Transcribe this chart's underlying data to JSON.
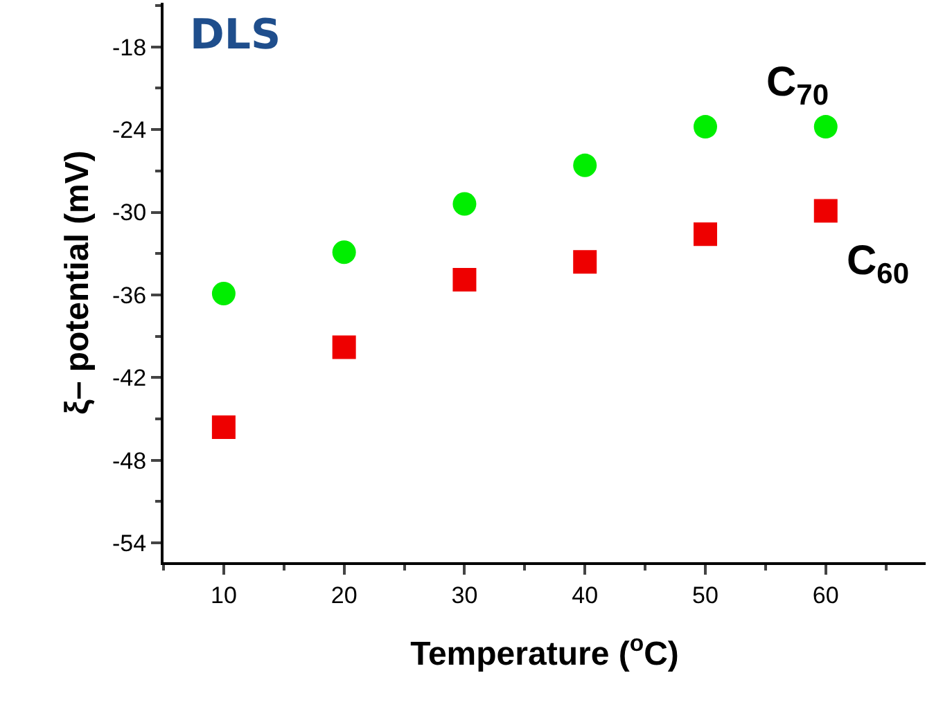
{
  "chart_data": {
    "type": "scatter",
    "xlabel": "Temperature ($^{o}$C)",
    "ylabel": "ξ– potential (mV)",
    "annotations": [
      "DLS"
    ],
    "x": [
      10,
      20,
      30,
      40,
      50,
      60
    ],
    "series": [
      {
        "name": "C$_{70}$",
        "color": "#00ee00",
        "marker": "circle",
        "values": [
          -35.9,
          -32.9,
          -29.4,
          -26.6,
          -23.8,
          -23.8
        ]
      },
      {
        "name": "C$_{60}$",
        "color": "#ee0000",
        "marker": "square",
        "values": [
          -45.6,
          -39.8,
          -34.9,
          -33.6,
          -31.6,
          -29.9
        ]
      }
    ],
    "xlim": [
      5,
      68.3
    ],
    "xticks": [
      10,
      20,
      30,
      40,
      50,
      60
    ],
    "ylim": [
      -55.4,
      -14.8
    ],
    "yticks": [
      -54,
      -48,
      -42,
      -36,
      -30,
      -24,
      -18
    ],
    "grid": false,
    "legend": false
  }
}
